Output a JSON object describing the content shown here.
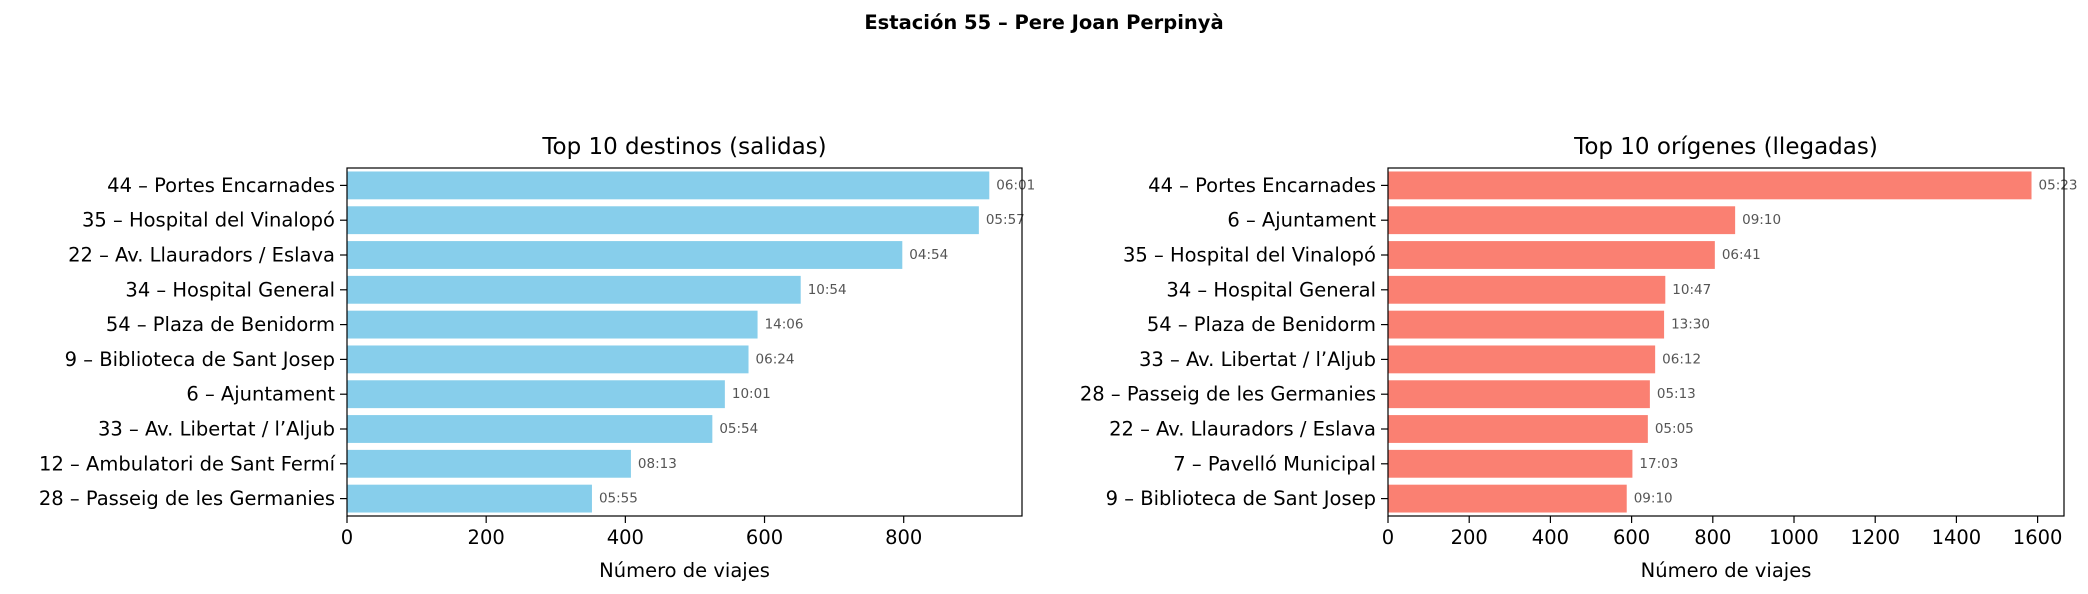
{
  "suptitle": "Estación 55 – Pere Joan Perpinyà",
  "chart_data": [
    {
      "type": "bar",
      "orientation": "horizontal",
      "title": "Top 10 destinos (salidas)",
      "xlabel": "Número de viajes",
      "ylabel": "",
      "color": "#87CEEB",
      "xlim": [
        0,
        970
      ],
      "xticks": [
        0,
        200,
        400,
        600,
        800
      ],
      "categories": [
        "44 – Portes Encarnades",
        "35 – Hospital del Vinalopó",
        "22 – Av. Llauradors / Eslava",
        "34 – Hospital General",
        "54 – Plaza de Benidorm",
        "9 – Biblioteca de Sant Josep",
        "6 – Ajuntament",
        "33 – Av. Libertat / l’Aljub",
        "12 – Ambulatori de Sant Fermí",
        "28 – Passeig de les Germanies"
      ],
      "values": [
        923,
        908,
        798,
        652,
        590,
        577,
        543,
        525,
        408,
        352
      ],
      "data_labels": [
        "06:01",
        "05:57",
        "04:54",
        "10:54",
        "14:06",
        "06:24",
        "10:01",
        "05:54",
        "08:13",
        "05:55"
      ]
    },
    {
      "type": "bar",
      "orientation": "horizontal",
      "title": "Top 10 orígenes (llegadas)",
      "xlabel": "Número de viajes",
      "ylabel": "",
      "color": "#FA8072",
      "xlim": [
        0,
        1665
      ],
      "xticks": [
        0,
        200,
        400,
        600,
        800,
        1000,
        1200,
        1400,
        1600
      ],
      "categories": [
        "44 – Portes Encarnades",
        "6 – Ajuntament",
        "35 – Hospital del Vinalopó",
        "34 – Hospital General",
        "54 – Plaza de Benidorm",
        "33 – Av. Libertat / l’Aljub",
        "28 – Passeig de les Germanies",
        "22 – Av. Llauradors / Eslava",
        "7 – Pavelló Municipal",
        "9 – Biblioteca de Sant Josep"
      ],
      "values": [
        1585,
        855,
        805,
        683,
        680,
        658,
        645,
        640,
        602,
        588
      ],
      "data_labels": [
        "05:23",
        "09:10",
        "06:41",
        "10:47",
        "13:30",
        "06:12",
        "05:13",
        "05:05",
        "17:03",
        "09:10"
      ]
    }
  ]
}
